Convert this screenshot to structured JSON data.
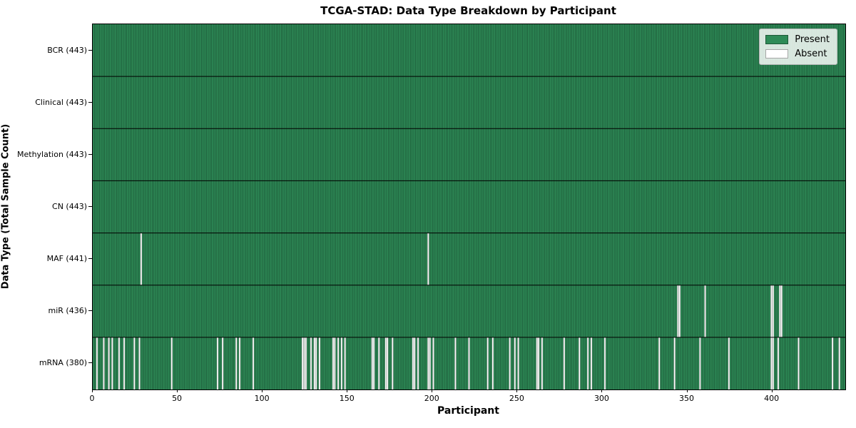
{
  "title": "TCGA-STAD: Data Type Breakdown by Participant",
  "xlabel": "Participant",
  "ylabel": "Data Type (Total Sample Count)",
  "legend": {
    "present_label": "Present",
    "absent_label": "Absent"
  },
  "colors": {
    "present": "#2e8b57",
    "absent": "#ffffff",
    "bar_edge": "rgba(10,30,18,0.55)",
    "row_separator": "#000000",
    "plot_border": "#000000",
    "legend_background": "rgba(255,255,255,0.82)"
  },
  "chart_data": {
    "type": "heatmap",
    "title": "TCGA-STAD: Data Type Breakdown by Participant",
    "xlabel": "Participant",
    "ylabel": "Data Type (Total Sample Count)",
    "legend": [
      "Present",
      "Absent"
    ],
    "legend_position": "upper right",
    "grid": false,
    "n_participants": 443,
    "x_ticks": [
      0,
      50,
      100,
      150,
      200,
      250,
      300,
      350,
      400
    ],
    "rows": [
      {
        "name": "BCR",
        "label": "BCR (443)",
        "total": 443,
        "absent_participants": []
      },
      {
        "name": "Clinical",
        "label": "Clinical (443)",
        "total": 443,
        "absent_participants": []
      },
      {
        "name": "Methylation",
        "label": "Methylation (443)",
        "total": 443,
        "absent_participants": []
      },
      {
        "name": "CN",
        "label": "CN (443)",
        "total": 443,
        "absent_participants": []
      },
      {
        "name": "MAF",
        "label": "MAF (441)",
        "total": 441,
        "absent_participants": [
          28,
          197
        ]
      },
      {
        "name": "miR",
        "label": "miR (436)",
        "total": 436,
        "absent_participants": [
          344,
          345,
          360,
          399,
          400,
          404,
          405
        ]
      },
      {
        "name": "mRNA",
        "label": "mRNA (380)",
        "total": 380,
        "absent_participants": [
          2,
          6,
          9,
          11,
          15,
          18,
          24,
          27,
          46,
          73,
          76,
          84,
          86,
          94,
          123,
          124,
          125,
          128,
          130,
          131,
          133,
          141,
          142,
          144,
          146,
          148,
          164,
          165,
          168,
          172,
          173,
          176,
          188,
          189,
          191,
          197,
          198,
          200,
          213,
          221,
          232,
          235,
          245,
          248,
          250,
          261,
          262,
          264,
          277,
          286,
          291,
          293,
          301,
          333,
          342,
          357,
          374,
          399,
          400,
          403,
          415,
          435,
          439
        ]
      }
    ]
  }
}
